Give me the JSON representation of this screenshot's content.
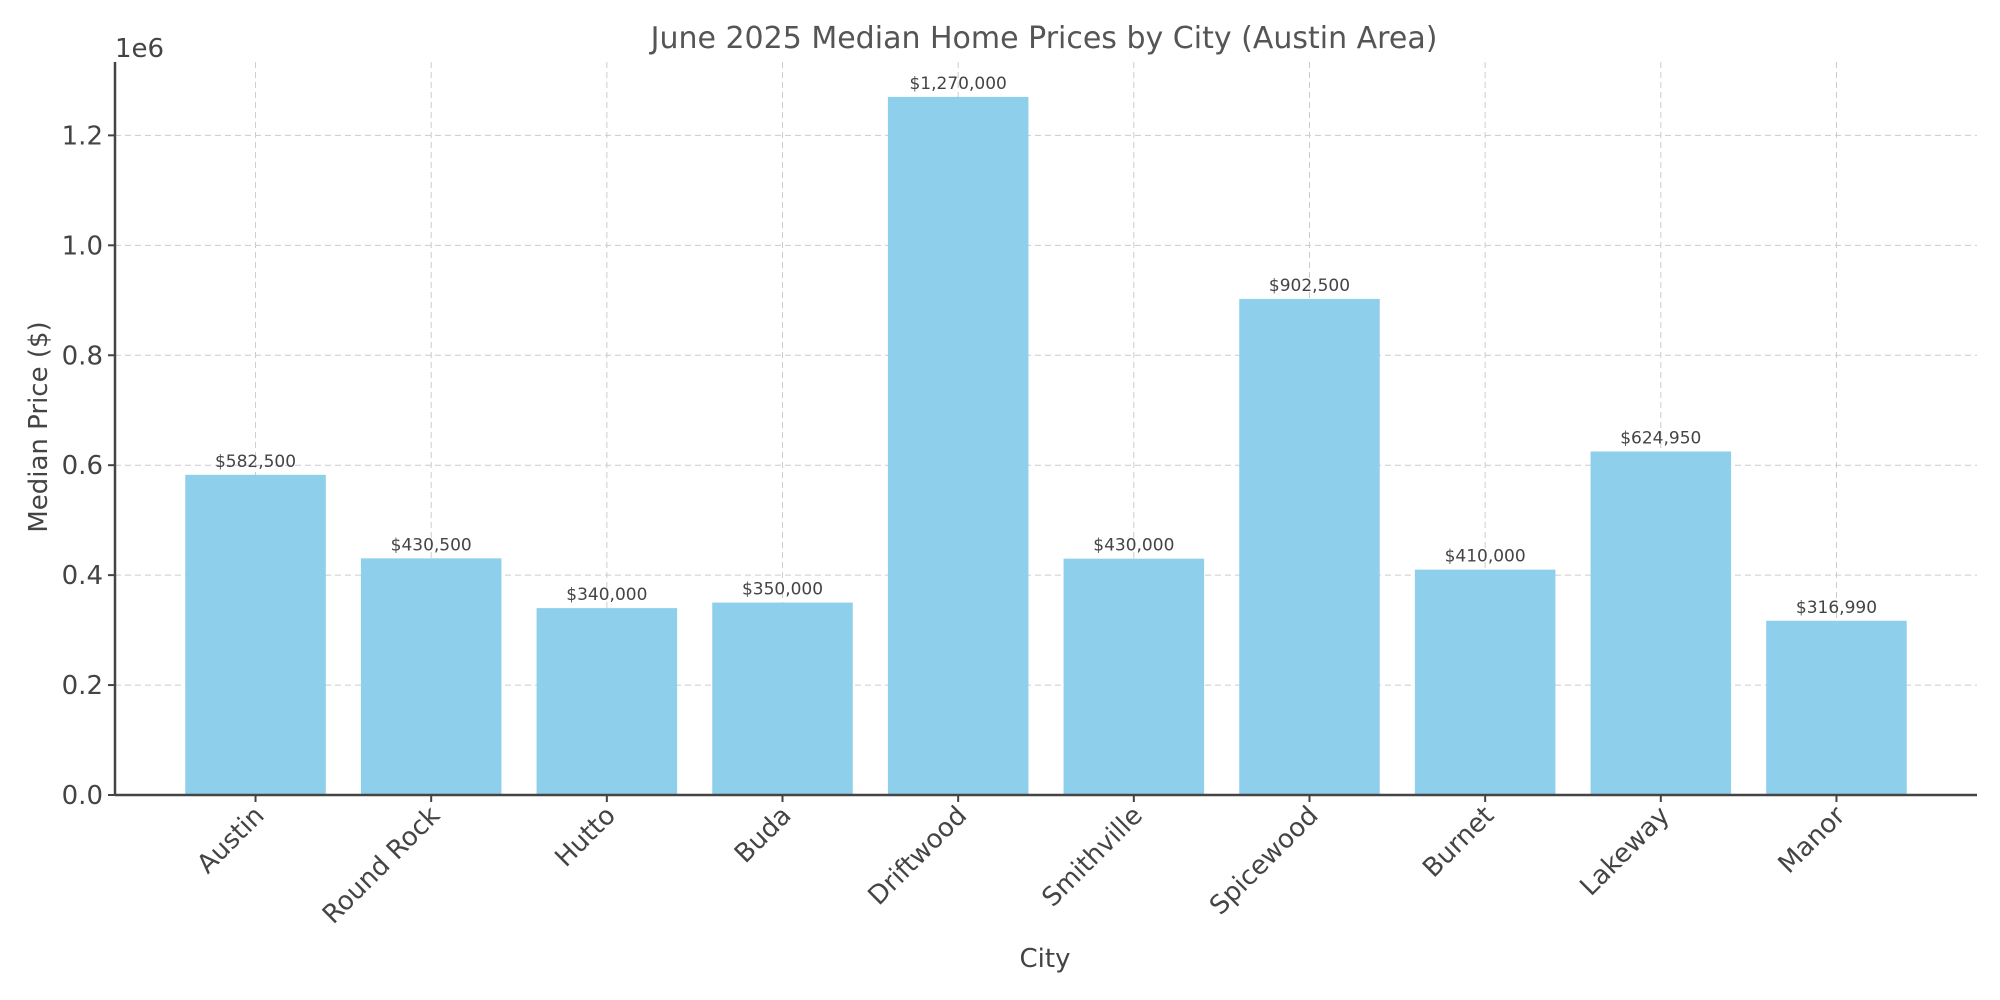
{
  "chart_data": {
    "type": "bar",
    "title": "June 2025 Median Home Prices by City (Austin Area)",
    "xlabel": "City",
    "ylabel": "Median Price ($)",
    "y_offset_label": "1e6",
    "categories": [
      "Austin",
      "Round Rock",
      "Hutto",
      "Buda",
      "Driftwood",
      "Smithville",
      "Spicewood",
      "Burnet",
      "Lakeway",
      "Manor"
    ],
    "values": [
      582500,
      430500,
      340000,
      350000,
      1270000,
      430000,
      902500,
      410000,
      624950,
      316990
    ],
    "value_labels": [
      "$582,500",
      "$430,500",
      "$340,000",
      "$350,000",
      "$1,270,000",
      "$430,000",
      "$902,500",
      "$410,000",
      "$624,950",
      "$316,990"
    ],
    "yticks": [
      0,
      200000,
      400000,
      600000,
      800000,
      1000000,
      1200000
    ],
    "ytick_labels": [
      "0.0",
      "0.2",
      "0.4",
      "0.6",
      "0.8",
      "1.0",
      "1.2"
    ],
    "ylim": [
      0,
      1333500
    ],
    "grid": true,
    "bar_color": "#8ecfeb",
    "axis_color": "#444444",
    "grid_color": "#cccccc"
  }
}
